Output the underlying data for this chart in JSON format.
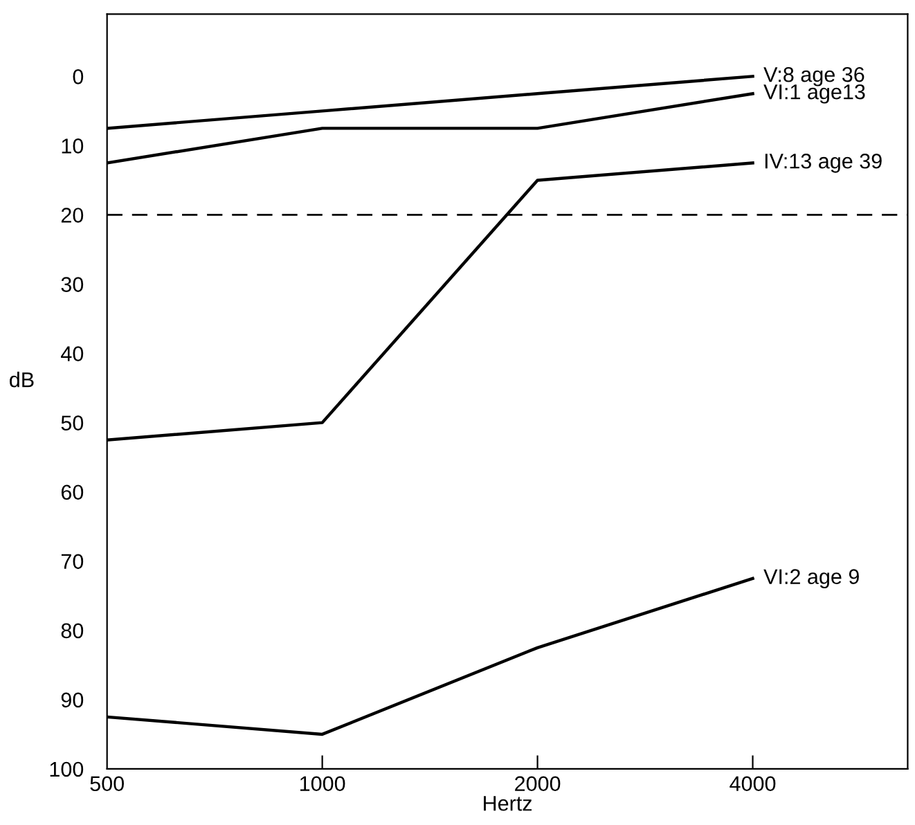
{
  "chart_data": {
    "type": "line",
    "xlabel": "Hertz",
    "ylabel": "dB",
    "categories": [
      "500",
      "1000",
      "2000",
      "4000"
    ],
    "ylim": [
      100,
      -9
    ],
    "yticks": [
      0,
      10,
      20,
      30,
      40,
      50,
      60,
      70,
      80,
      90,
      100
    ],
    "grid": false,
    "legend": false,
    "marker": "none",
    "line_style": "solid",
    "series": [
      {
        "name": "V:8 age 36",
        "color": "#000000",
        "values": [
          7.5,
          5,
          2.5,
          0
        ]
      },
      {
        "name": "VI:1 age13",
        "color": "#000000",
        "values": [
          12.5,
          7.5,
          7.5,
          2.5
        ]
      },
      {
        "name": "IV:13 age 39",
        "color": "#000000",
        "values": [
          52.5,
          50,
          15,
          12.5
        ]
      },
      {
        "name": "VI:2 age 9",
        "color": "#000000",
        "values": [
          92.5,
          95,
          82.5,
          72.5
        ]
      }
    ],
    "ref_lines": [
      {
        "axis": "y",
        "value": 20,
        "line_style": "dashed",
        "color": "#000000"
      }
    ]
  }
}
